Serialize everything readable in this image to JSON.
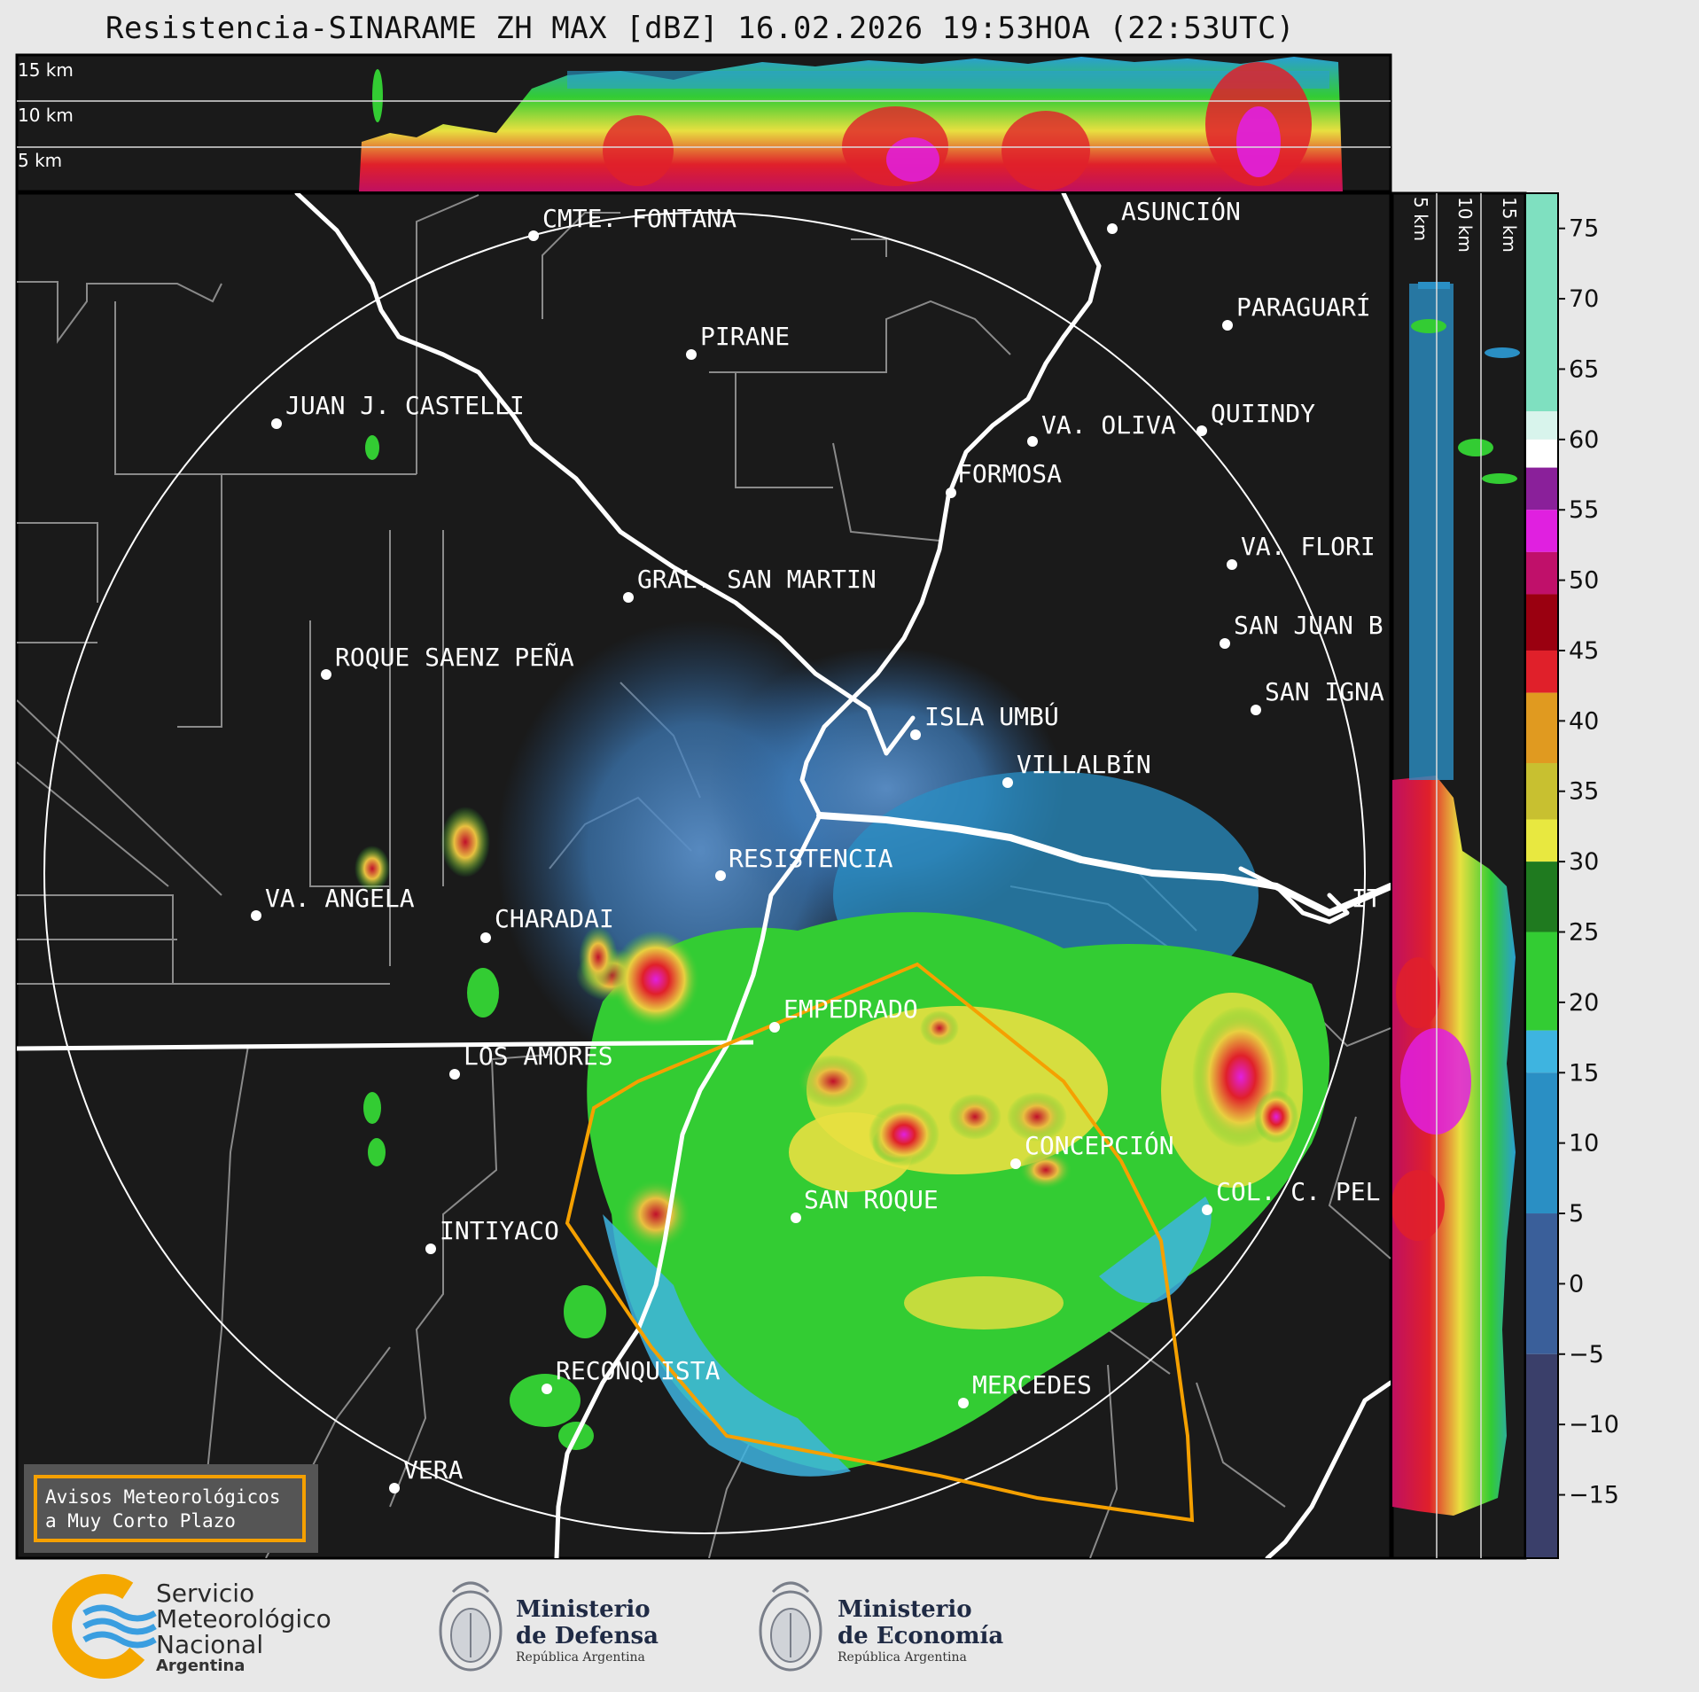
{
  "title": "Resistencia-SINARAME ZH MAX [dBZ] 16.02.2026 19:53HOA (22:53UTC)",
  "top_panel": {
    "height_labels": [
      "15 km",
      "10 km",
      "5 km"
    ]
  },
  "side_panel": {
    "height_labels": [
      "5 km",
      "10 km",
      "15 km"
    ]
  },
  "colorbar": {
    "ticks": [
      "75",
      "70",
      "65",
      "60",
      "55",
      "50",
      "45",
      "40",
      "35",
      "30",
      "25",
      "20",
      "15",
      "10",
      "5",
      "0",
      "−5",
      "−10",
      "−15"
    ],
    "colors": {
      "dark_blue": "#3a3f6a",
      "blue": "#2a8fc4",
      "light_blue": "#3eb4e0",
      "green": "#33cc33",
      "dark_green": "#1f7a1f",
      "yellow": "#e8e840",
      "orange": "#e09a20",
      "red": "#e0202a",
      "dark_red": "#9a0010",
      "magenta": "#e020e0",
      "purple": "#8a209a",
      "white": "#ffffff",
      "mint": "#7fe0c0"
    }
  },
  "cities": [
    {
      "name": "CMTE. FONTANA"
    },
    {
      "name": "ASUNCIÓN"
    },
    {
      "name": "PARAGUARÍ"
    },
    {
      "name": "PIRANE"
    },
    {
      "name": "JUAN J. CASTELLI"
    },
    {
      "name": "VA. OLIVA"
    },
    {
      "name": "QUIINDY"
    },
    {
      "name": "FORMOSA"
    },
    {
      "name": "VA. FLORI"
    },
    {
      "name": "GRAL. SAN MARTIN"
    },
    {
      "name": "SAN JUAN B"
    },
    {
      "name": "ROQUE SAENZ PEÑA"
    },
    {
      "name": "SAN IGNA"
    },
    {
      "name": "ISLA UMBÚ"
    },
    {
      "name": "VILLALBÍN"
    },
    {
      "name": "RESISTENCIA"
    },
    {
      "name": "VA. ANGELA"
    },
    {
      "name": "IT"
    },
    {
      "name": "CHARADAI"
    },
    {
      "name": "EMPEDRADO"
    },
    {
      "name": "LOS AMORES"
    },
    {
      "name": "CONCEPCIÓN"
    },
    {
      "name": "SAN ROQUE"
    },
    {
      "name": "COL. C. PEL"
    },
    {
      "name": "INTIYACO"
    },
    {
      "name": "RECONQUISTA"
    },
    {
      "name": "MERCEDES"
    },
    {
      "name": "VERA"
    }
  ],
  "warning_box": {
    "line1": "Avisos Meteorológicos",
    "line2": "a Muy Corto Plazo",
    "border_color": "#f5a000"
  },
  "footer": {
    "smn": {
      "line1": "Servicio",
      "line2": "Meteorológico",
      "line3": "Nacional",
      "line4": "Argentina"
    },
    "defensa": {
      "line1": "Ministerio",
      "line2": "de Defensa",
      "line3": "República Argentina"
    },
    "economia": {
      "line1": "Ministerio",
      "line2": "de Economía",
      "line3": "República Argentina"
    }
  }
}
